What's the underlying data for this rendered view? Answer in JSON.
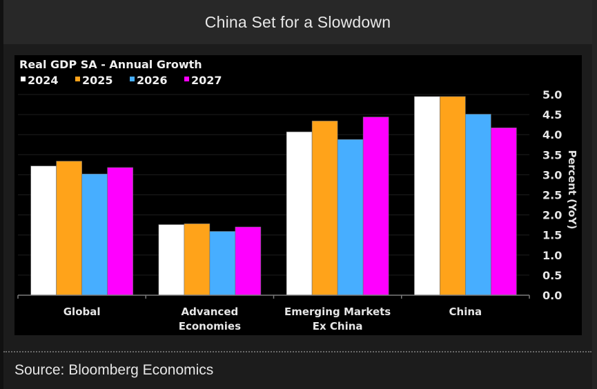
{
  "header": {
    "title": "China Set for a Slowdown"
  },
  "footer": {
    "source": "Source: Bloomberg Economics"
  },
  "chart_data": {
    "type": "bar",
    "title": "Real GDP SA - Annual Growth",
    "categories": [
      "Global",
      "Advanced Economies",
      "Emerging Markets Ex China",
      "China"
    ],
    "category_lines": [
      [
        "Global"
      ],
      [
        "Advanced",
        "Economies"
      ],
      [
        "Emerging Markets",
        "Ex China"
      ],
      [
        "China"
      ]
    ],
    "series": [
      {
        "name": "2024",
        "color": "#ffffff",
        "values": [
          3.22,
          1.76,
          4.07,
          4.95
        ]
      },
      {
        "name": "2025",
        "color": "#ffa31a",
        "values": [
          3.34,
          1.78,
          4.34,
          4.95
        ]
      },
      {
        "name": "2026",
        "color": "#47aeff",
        "values": [
          3.02,
          1.59,
          3.88,
          4.51
        ]
      },
      {
        "name": "2027",
        "color": "#ff00ff",
        "values": [
          3.18,
          1.7,
          4.44,
          4.17
        ]
      }
    ],
    "xlabel": "",
    "ylabel": "Percent (YoY)",
    "ylim": [
      0,
      5.0
    ],
    "yticks": [
      "0.0",
      "0.5",
      "1.0",
      "1.5",
      "2.0",
      "2.5",
      "3.0",
      "3.5",
      "4.0",
      "4.5",
      "5.0"
    ],
    "ytick_values": [
      0,
      0.5,
      1.0,
      1.5,
      2.0,
      2.5,
      3.0,
      3.5,
      4.0,
      4.5,
      5.0
    ],
    "yaxis_side": "right",
    "grid": true,
    "legend_position": "top-left"
  }
}
